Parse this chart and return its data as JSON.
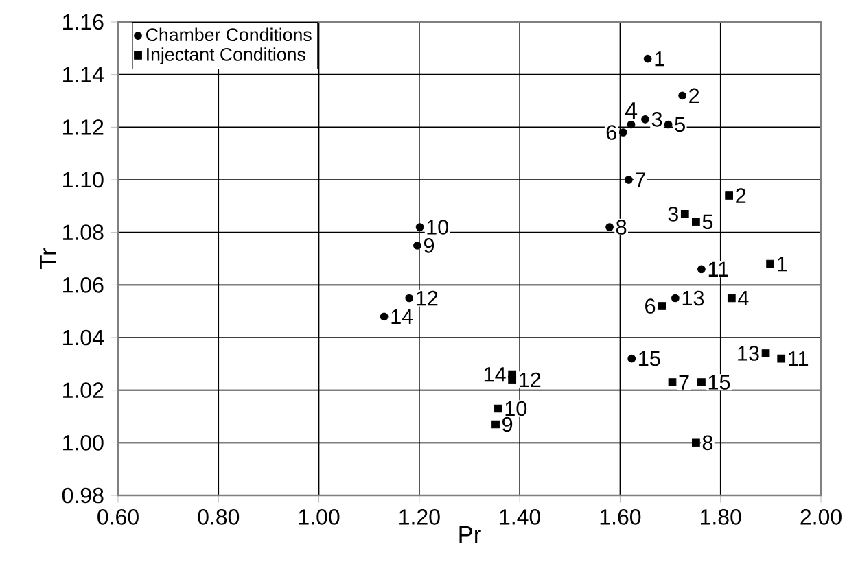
{
  "chart_data": {
    "type": "scatter",
    "xlabel": "Pr",
    "ylabel": "Tr",
    "xlim": [
      0.6,
      2.0
    ],
    "ylim": [
      0.98,
      1.16
    ],
    "xticks": [
      {
        "value": 0.6,
        "label": "0.60"
      },
      {
        "value": 0.8,
        "label": "0.80"
      },
      {
        "value": 1.0,
        "label": "1.00"
      },
      {
        "value": 1.2,
        "label": "1.20"
      },
      {
        "value": 1.4,
        "label": "1.40"
      },
      {
        "value": 1.6,
        "label": "1.60"
      },
      {
        "value": 1.8,
        "label": "1.80"
      },
      {
        "value": 2.0,
        "label": "2.00"
      }
    ],
    "yticks": [
      {
        "value": 0.98,
        "label": "0.98"
      },
      {
        "value": 1.0,
        "label": "1.00"
      },
      {
        "value": 1.02,
        "label": "1.02"
      },
      {
        "value": 1.04,
        "label": "1.04"
      },
      {
        "value": 1.06,
        "label": "1.06"
      },
      {
        "value": 1.08,
        "label": "1.08"
      },
      {
        "value": 1.1,
        "label": "1.10"
      },
      {
        "value": 1.12,
        "label": "1.12"
      },
      {
        "value": 1.14,
        "label": "1.14"
      },
      {
        "value": 1.16,
        "label": "1.16"
      }
    ],
    "grid": true,
    "legend": "top left",
    "series": [
      {
        "name": "Chamber Conditions",
        "color": "#000000",
        "marker": "circle",
        "x": [
          1.655,
          1.724,
          1.65,
          1.622,
          1.696,
          1.606,
          1.617,
          1.579,
          1.196,
          1.201,
          1.762,
          1.18,
          1.71,
          1.13,
          1.623
        ],
        "values": [
          1.146,
          1.132,
          1.123,
          1.121,
          1.121,
          1.118,
          1.1,
          1.082,
          1.075,
          1.082,
          1.066,
          1.055,
          1.055,
          1.048,
          1.032
        ]
      },
      {
        "name": "Injectant Conditions",
        "color": "#000000",
        "marker": "square",
        "x": [
          1.899,
          1.817,
          1.729,
          1.822,
          1.751,
          1.683,
          1.704,
          1.751,
          1.352,
          1.357,
          1.921,
          1.385,
          1.89,
          1.385,
          1.762
        ],
        "values": [
          1.068,
          1.094,
          1.087,
          1.055,
          1.084,
          1.052,
          1.023,
          1.0,
          1.007,
          1.013,
          1.032,
          1.024,
          1.034,
          1.026,
          1.023
        ]
      }
    ],
    "annotations": [
      {
        "text": "1",
        "x": 1.655,
        "y": 1.146
      },
      {
        "text": "2",
        "x": 1.724,
        "y": 1.132
      },
      {
        "text": "3",
        "x": 1.65,
        "y": 1.123
      },
      {
        "text": "4",
        "x": 1.622,
        "y": 1.121
      },
      {
        "text": "5",
        "x": 1.696,
        "y": 1.121
      },
      {
        "text": "6",
        "x": 1.606,
        "y": 1.118
      },
      {
        "text": "7",
        "x": 1.617,
        "y": 1.1
      },
      {
        "text": "8",
        "x": 1.579,
        "y": 1.082
      },
      {
        "text": "9",
        "x": 1.196,
        "y": 1.075
      },
      {
        "text": "10",
        "x": 1.201,
        "y": 1.082
      },
      {
        "text": "11",
        "x": 1.762,
        "y": 1.066
      },
      {
        "text": "12",
        "x": 1.18,
        "y": 1.055
      },
      {
        "text": "13",
        "x": 1.71,
        "y": 1.055
      },
      {
        "text": "14",
        "x": 1.13,
        "y": 1.048
      },
      {
        "text": "15",
        "x": 1.623,
        "y": 1.032
      },
      {
        "text": "1",
        "x": 1.899,
        "y": 1.068
      },
      {
        "text": "2",
        "x": 1.817,
        "y": 1.094
      },
      {
        "text": "3",
        "x": 1.729,
        "y": 1.087
      },
      {
        "text": "4",
        "x": 1.822,
        "y": 1.055
      },
      {
        "text": "5",
        "x": 1.751,
        "y": 1.084
      },
      {
        "text": "6",
        "x": 1.683,
        "y": 1.052
      },
      {
        "text": "7",
        "x": 1.704,
        "y": 1.023
      },
      {
        "text": "8",
        "x": 1.751,
        "y": 1.0
      },
      {
        "text": "9",
        "x": 1.352,
        "y": 1.007
      },
      {
        "text": "10",
        "x": 1.357,
        "y": 1.013
      },
      {
        "text": "11",
        "x": 1.921,
        "y": 1.032
      },
      {
        "text": "12",
        "x": 1.385,
        "y": 1.024
      },
      {
        "text": "13",
        "x": 1.89,
        "y": 1.034
      },
      {
        "text": "14",
        "x": 1.385,
        "y": 1.026
      },
      {
        "text": "15",
        "x": 1.762,
        "y": 1.023
      }
    ]
  }
}
